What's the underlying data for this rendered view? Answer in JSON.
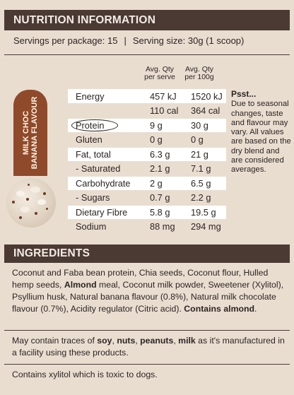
{
  "title": "NUTRITION INFORMATION",
  "servings": {
    "per_package": "Servings per package: 15",
    "separator": "|",
    "serving_size": "Serving size: 30g (1 scoop)"
  },
  "columns": {
    "serve_line1": "Avg. Qty",
    "serve_line2": "per serve",
    "per100_line1": "Avg. Qty",
    "per100_line2": "per 100g"
  },
  "flavour_tab": {
    "line1": "MILK CHOC",
    "line2": "BANANA FLAVOUR"
  },
  "rows": [
    {
      "label": "Energy",
      "serve": "457 kJ",
      "per100": "1520 kJ"
    },
    {
      "label": "",
      "serve": "110 cal",
      "per100": "364 cal"
    },
    {
      "label": "Protein",
      "serve": "9 g",
      "per100": "30 g"
    },
    {
      "label": "Gluten",
      "serve": "0 g",
      "per100": "0 g"
    },
    {
      "label": "Fat, total",
      "serve": "6.3 g",
      "per100": "21 g"
    },
    {
      "label": "- Saturated",
      "serve": "2.1 g",
      "per100": "7.1 g"
    },
    {
      "label": "Carbohydrate",
      "serve": "2 g",
      "per100": "6.5 g"
    },
    {
      "label": "- Sugars",
      "serve": "0.7 g",
      "per100": "2.2 g"
    },
    {
      "label": "Dietary Fibre",
      "serve": "5.8 g",
      "per100": "19.5 g"
    },
    {
      "label": "Sodium",
      "serve": "88 mg",
      "per100": "294 mg"
    }
  ],
  "note": {
    "heading": "Psst...",
    "body": "Due to seasonal changes, taste and flavour may vary. All values are based on the dry blend and are considered averages."
  },
  "ingredients": {
    "heading": "INGREDIENTS",
    "part1": "Coconut and Faba bean protein, Chia seeds, Coconut flour, Hulled hemp seeds, ",
    "almond": "Almond",
    "part2": " meal, Coconut milk powder, Sweetener (Xylitol), Psyllium husk, Natural banana flavour (0.8%), Natural milk chocolate flavour (0.7%), Acidity regulator (Citric acid). ",
    "contains": "Contains almond",
    "end": "."
  },
  "traces": {
    "pre": "May contain traces of ",
    "soy": "soy",
    "c1": ", ",
    "nuts": "nuts",
    "c2": ", ",
    "peanuts": "peanuts",
    "c3": ", ",
    "milk": "milk",
    "post": " as it's manufactured in a facility using these products."
  },
  "warning": "Contains xylitol which is toxic to dogs.",
  "colors": {
    "background": "#e9ddd0",
    "header_bar": "#4a3a33",
    "flavour_tab": "#8f4a2b",
    "table_white": "#ffffff"
  }
}
